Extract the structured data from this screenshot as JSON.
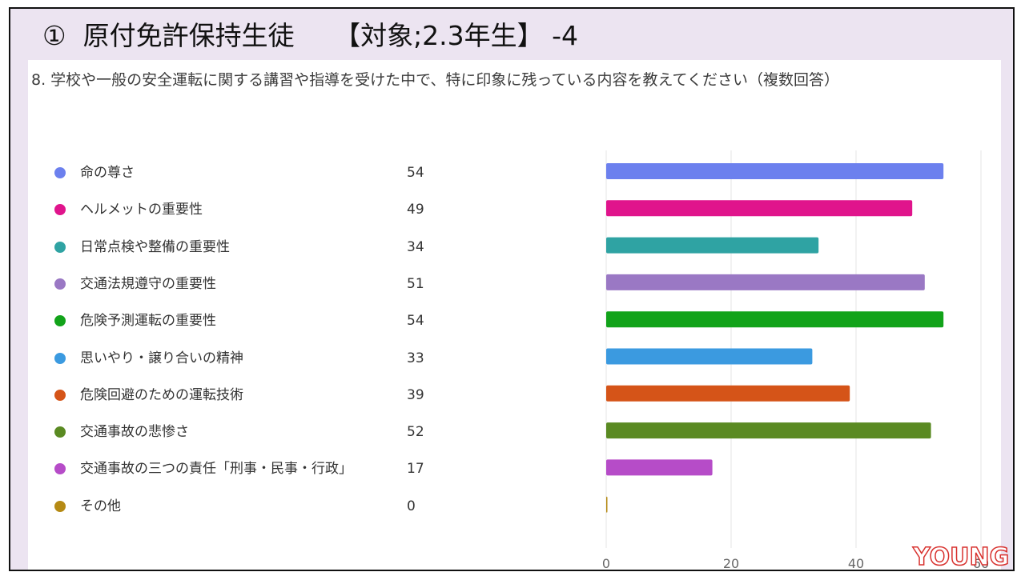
{
  "slide": {
    "title": "①  原付免許保持生徒　　【対象;2.3年生】 -4",
    "background": "#ece4f1"
  },
  "card": {
    "question": "8. 学校や一般の安全運転に関する講習や指導を受けた中で、特に印象に残っている内容を教えてください（複数回答）"
  },
  "chart_data": {
    "type": "bar",
    "orientation": "horizontal",
    "categories": [
      "命の尊さ",
      "ヘルメットの重要性",
      "日常点検や整備の重要性",
      "交通法規遵守の重要性",
      "危険予測運転の重要性",
      "思いやり・譲り合いの精神",
      "危険回避のための運転技術",
      "交通事故の悲惨さ",
      "交通事故の三つの責任「刑事・民事・行政」",
      "その他"
    ],
    "values": [
      54,
      49,
      34,
      51,
      54,
      33,
      39,
      52,
      17,
      0
    ],
    "value_labels": [
      "54",
      "49",
      "34",
      "51",
      "54",
      "33",
      "39",
      "52",
      "17",
      "0"
    ],
    "colors": [
      "#6c80ee",
      "#e0148c",
      "#2fa3a3",
      "#9a78c4",
      "#12a31a",
      "#3b9ae0",
      "#d55418",
      "#5a8a22",
      "#b64cc8",
      "#b58a14"
    ],
    "xlim": [
      0,
      60
    ],
    "xticks": [
      0,
      20,
      40,
      60
    ],
    "xtick_labels": [
      "0",
      "20",
      "40",
      "60"
    ],
    "grid": true,
    "legend": "left"
  },
  "watermark": {
    "text": "YOUNG",
    "color": "#d8322f"
  }
}
